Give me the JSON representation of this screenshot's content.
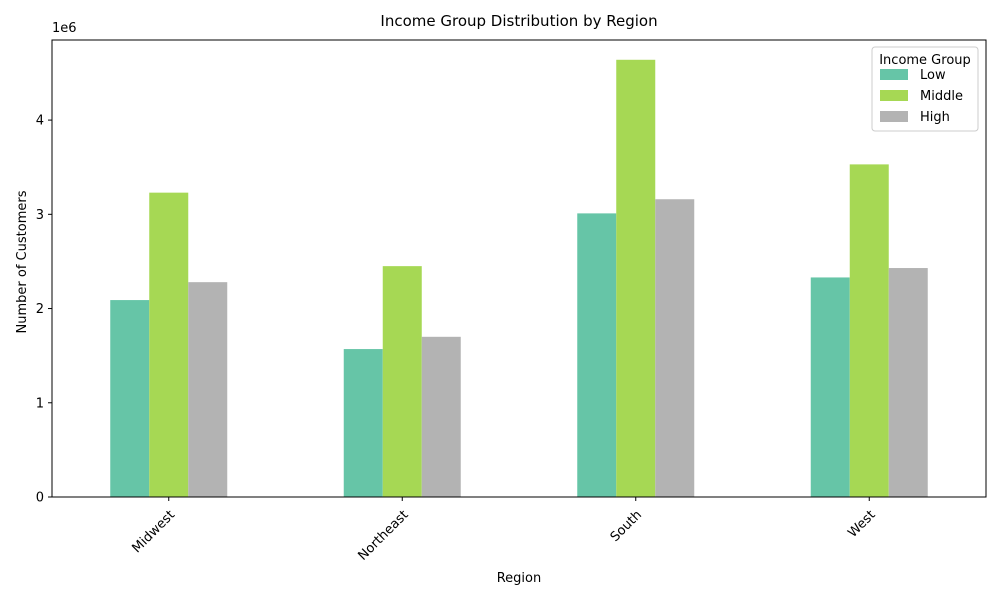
{
  "chart_data": {
    "type": "bar",
    "title": "Income Group Distribution by Region",
    "xlabel": "Region",
    "ylabel": "Number of Customers",
    "y_multiplier_label": "1e6",
    "categories": [
      "Midwest",
      "Northeast",
      "South",
      "West"
    ],
    "series": [
      {
        "name": "Low",
        "color": "#66c5a7",
        "values": [
          2090000,
          1570000,
          3010000,
          2330000
        ]
      },
      {
        "name": "Middle",
        "color": "#a6d854",
        "values": [
          3230000,
          2450000,
          4640000,
          3530000
        ]
      },
      {
        "name": "High",
        "color": "#b3b3b3",
        "values": [
          2280000,
          1700000,
          3160000,
          2430000
        ]
      }
    ],
    "ylim": [
      0,
      4850000
    ],
    "yticks": [
      0,
      1000000,
      2000000,
      3000000,
      4000000
    ],
    "ytick_labels": [
      "0",
      "1",
      "2",
      "3",
      "4"
    ],
    "legend": {
      "title": "Income Group",
      "position": "top-right"
    },
    "grid": false
  }
}
